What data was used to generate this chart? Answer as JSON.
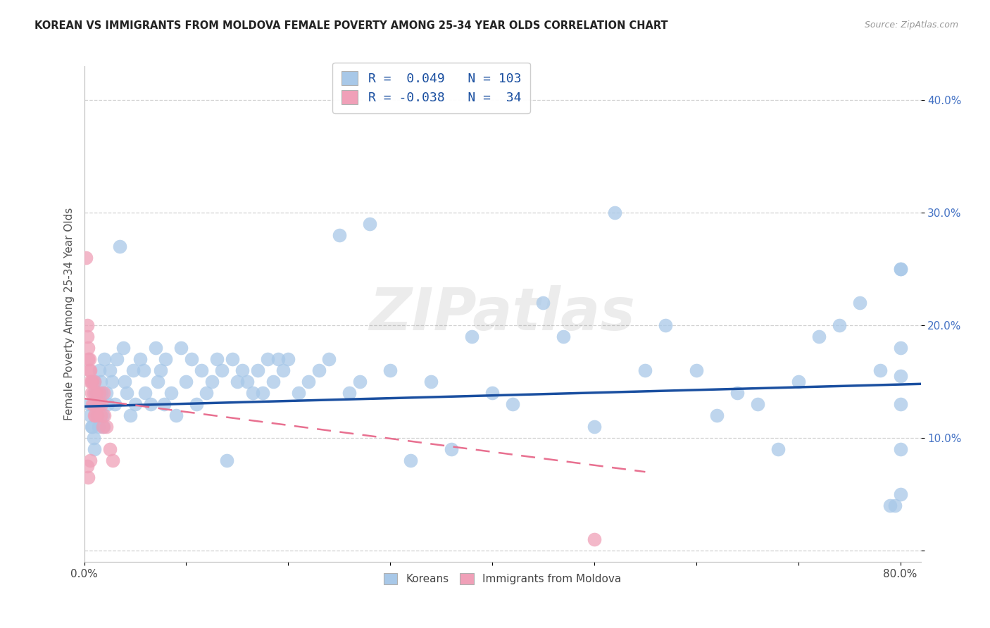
{
  "title": "KOREAN VS IMMIGRANTS FROM MOLDOVA FEMALE POVERTY AMONG 25-34 YEAR OLDS CORRELATION CHART",
  "source": "Source: ZipAtlas.com",
  "ylabel": "Female Poverty Among 25-34 Year Olds",
  "xlim": [
    0.0,
    0.82
  ],
  "ylim": [
    -0.01,
    0.43
  ],
  "xtick_positions": [
    0.0,
    0.1,
    0.2,
    0.3,
    0.4,
    0.5,
    0.6,
    0.7,
    0.8
  ],
  "xtick_labels": [
    "0.0%",
    "",
    "",
    "",
    "",
    "",
    "",
    "",
    "80.0%"
  ],
  "ytick_positions": [
    0.0,
    0.1,
    0.2,
    0.3,
    0.4
  ],
  "ytick_labels": [
    "",
    "10.0%",
    "20.0%",
    "30.0%",
    "40.0%"
  ],
  "korean_R": 0.049,
  "korean_N": 103,
  "moldova_R": -0.038,
  "moldova_N": 34,
  "korean_color": "#a8c8e8",
  "moldova_color": "#f0a0b8",
  "korean_line_color": "#1a4fa0",
  "moldova_line_color": "#e87090",
  "watermark": "ZIPatlas",
  "bg_color": "#ffffff",
  "grid_color": "#cccccc",
  "title_color": "#222222",
  "axis_label_color": "#555555",
  "right_tick_color": "#4472c4",
  "source_color": "#999999",
  "korean_x": [
    0.005,
    0.006,
    0.007,
    0.008,
    0.009,
    0.01,
    0.01,
    0.011,
    0.012,
    0.013,
    0.014,
    0.015,
    0.016,
    0.017,
    0.018,
    0.019,
    0.02,
    0.022,
    0.023,
    0.025,
    0.027,
    0.03,
    0.032,
    0.035,
    0.038,
    0.04,
    0.042,
    0.045,
    0.048,
    0.05,
    0.055,
    0.058,
    0.06,
    0.065,
    0.07,
    0.072,
    0.075,
    0.078,
    0.08,
    0.085,
    0.09,
    0.095,
    0.1,
    0.105,
    0.11,
    0.115,
    0.12,
    0.125,
    0.13,
    0.135,
    0.14,
    0.145,
    0.15,
    0.155,
    0.16,
    0.165,
    0.17,
    0.175,
    0.18,
    0.185,
    0.19,
    0.195,
    0.2,
    0.21,
    0.22,
    0.23,
    0.24,
    0.25,
    0.26,
    0.27,
    0.28,
    0.3,
    0.32,
    0.34,
    0.36,
    0.38,
    0.4,
    0.42,
    0.45,
    0.47,
    0.5,
    0.52,
    0.55,
    0.57,
    0.6,
    0.62,
    0.64,
    0.66,
    0.68,
    0.7,
    0.72,
    0.74,
    0.76,
    0.78,
    0.79,
    0.795,
    0.8,
    0.8,
    0.8,
    0.8,
    0.8,
    0.8,
    0.8
  ],
  "korean_y": [
    0.13,
    0.12,
    0.11,
    0.11,
    0.1,
    0.09,
    0.15,
    0.14,
    0.13,
    0.12,
    0.11,
    0.16,
    0.15,
    0.14,
    0.12,
    0.11,
    0.17,
    0.14,
    0.13,
    0.16,
    0.15,
    0.13,
    0.17,
    0.27,
    0.18,
    0.15,
    0.14,
    0.12,
    0.16,
    0.13,
    0.17,
    0.16,
    0.14,
    0.13,
    0.18,
    0.15,
    0.16,
    0.13,
    0.17,
    0.14,
    0.12,
    0.18,
    0.15,
    0.17,
    0.13,
    0.16,
    0.14,
    0.15,
    0.17,
    0.16,
    0.08,
    0.17,
    0.15,
    0.16,
    0.15,
    0.14,
    0.16,
    0.14,
    0.17,
    0.15,
    0.17,
    0.16,
    0.17,
    0.14,
    0.15,
    0.16,
    0.17,
    0.28,
    0.14,
    0.15,
    0.29,
    0.16,
    0.08,
    0.15,
    0.09,
    0.19,
    0.14,
    0.13,
    0.22,
    0.19,
    0.11,
    0.3,
    0.16,
    0.2,
    0.16,
    0.12,
    0.14,
    0.13,
    0.09,
    0.15,
    0.19,
    0.2,
    0.22,
    0.16,
    0.04,
    0.04,
    0.05,
    0.13,
    0.25,
    0.25,
    0.18,
    0.09,
    0.155
  ],
  "moldova_x": [
    0.002,
    0.003,
    0.003,
    0.004,
    0.004,
    0.005,
    0.005,
    0.006,
    0.006,
    0.007,
    0.007,
    0.008,
    0.008,
    0.009,
    0.009,
    0.01,
    0.01,
    0.011,
    0.012,
    0.013,
    0.014,
    0.015,
    0.016,
    0.017,
    0.018,
    0.019,
    0.02,
    0.022,
    0.025,
    0.028,
    0.003,
    0.004,
    0.006,
    0.5
  ],
  "moldova_y": [
    0.26,
    0.2,
    0.19,
    0.18,
    0.17,
    0.16,
    0.17,
    0.15,
    0.16,
    0.15,
    0.14,
    0.13,
    0.15,
    0.13,
    0.14,
    0.12,
    0.15,
    0.12,
    0.14,
    0.12,
    0.13,
    0.14,
    0.12,
    0.13,
    0.11,
    0.14,
    0.12,
    0.11,
    0.09,
    0.08,
    0.075,
    0.065,
    0.08,
    0.01
  ]
}
